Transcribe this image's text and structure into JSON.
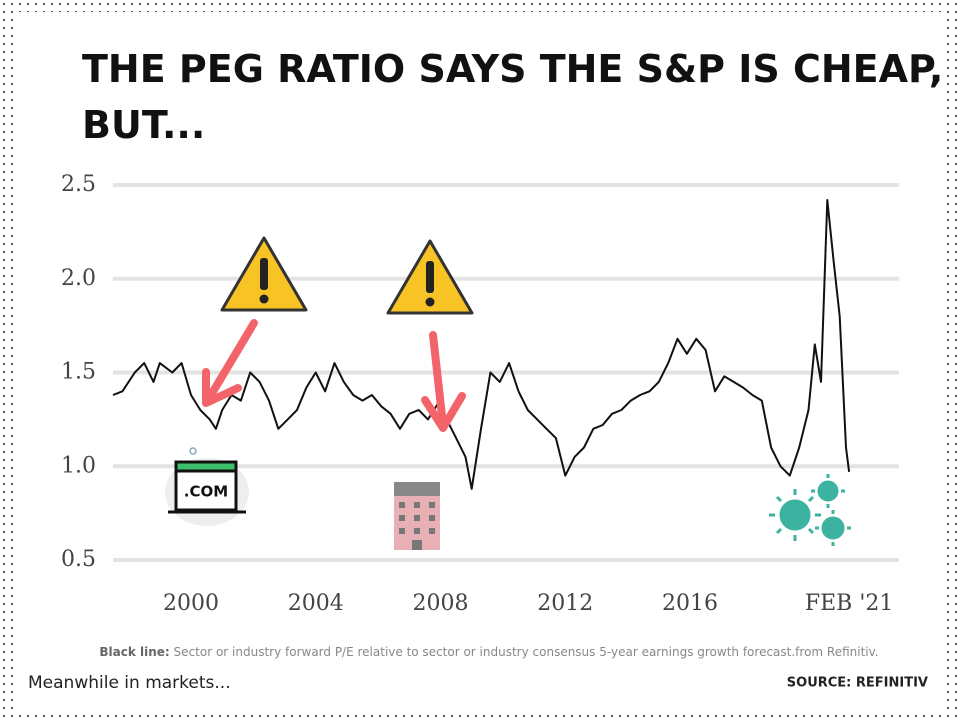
{
  "chart_data": {
    "type": "line",
    "title": [
      "THE PEG RATIO SAYS THE S&P IS CHEAP,",
      "BUT..."
    ],
    "footnote_label": "Black line:",
    "footnote": "Sector or industry forward P/E relative to sector or industry consensus 5-year earnings growth forecast.from Refinitiv.",
    "brand": "Meanwhile in markets...",
    "source": "SOURCE:  REFINITIV",
    "x": [
      1997.5,
      1997.8,
      1998.2,
      1998.5,
      1998.8,
      1999.0,
      1999.4,
      1999.7,
      2000.0,
      2000.3,
      2000.6,
      2000.8,
      2001.0,
      2001.3,
      2001.6,
      2001.9,
      2002.2,
      2002.5,
      2002.8,
      2003.1,
      2003.4,
      2003.7,
      2004.0,
      2004.3,
      2004.6,
      2004.9,
      2005.2,
      2005.5,
      2005.8,
      2006.1,
      2006.4,
      2006.7,
      2007.0,
      2007.3,
      2007.6,
      2007.9,
      2008.2,
      2008.5,
      2008.8,
      2009.0,
      2009.3,
      2009.6,
      2009.9,
      2010.2,
      2010.5,
      2010.8,
      2011.1,
      2011.4,
      2011.7,
      2012.0,
      2012.3,
      2012.6,
      2012.9,
      2013.2,
      2013.5,
      2013.8,
      2014.1,
      2014.4,
      2014.7,
      2015.0,
      2015.3,
      2015.6,
      2015.9,
      2016.2,
      2016.5,
      2016.8,
      2017.1,
      2017.4,
      2017.7,
      2018.0,
      2018.3,
      2018.6,
      2018.9,
      2019.2,
      2019.5,
      2019.8,
      2020.0,
      2020.2,
      2020.4,
      2020.6,
      2020.8,
      2021.0,
      2021.1
    ],
    "series": [
      {
        "color": "#111111",
        "values": [
          1.38,
          1.4,
          1.5,
          1.55,
          1.45,
          1.55,
          1.5,
          1.55,
          1.38,
          1.3,
          1.25,
          1.2,
          1.3,
          1.38,
          1.35,
          1.5,
          1.45,
          1.35,
          1.2,
          1.25,
          1.3,
          1.42,
          1.5,
          1.4,
          1.55,
          1.45,
          1.38,
          1.35,
          1.38,
          1.32,
          1.28,
          1.2,
          1.28,
          1.3,
          1.25,
          1.33,
          1.25,
          1.15,
          1.05,
          0.88,
          1.2,
          1.5,
          1.45,
          1.55,
          1.4,
          1.3,
          1.25,
          1.2,
          1.15,
          0.95,
          1.05,
          1.1,
          1.2,
          1.22,
          1.28,
          1.3,
          1.35,
          1.38,
          1.4,
          1.45,
          1.55,
          1.68,
          1.6,
          1.68,
          1.62,
          1.4,
          1.48,
          1.45,
          1.42,
          1.38,
          1.35,
          1.1,
          1.0,
          0.95,
          1.1,
          1.3,
          1.65,
          1.45,
          2.42,
          2.1,
          1.8,
          1.1,
          0.97
        ]
      }
    ],
    "xlim": [
      1997.5,
      2022.7
    ],
    "xticks": [
      2000,
      2004,
      2008,
      2012,
      2016,
      {
        "value": 2021.1,
        "label": "FEB '21"
      }
    ],
    "ylim": [
      0.5,
      2.5
    ],
    "yticks": [
      0.5,
      {
        "value": 1.0,
        "label": "1.0"
      },
      1.5,
      {
        "value": 2.0,
        "label": "2.0"
      },
      2.5
    ],
    "grid": true
  }
}
